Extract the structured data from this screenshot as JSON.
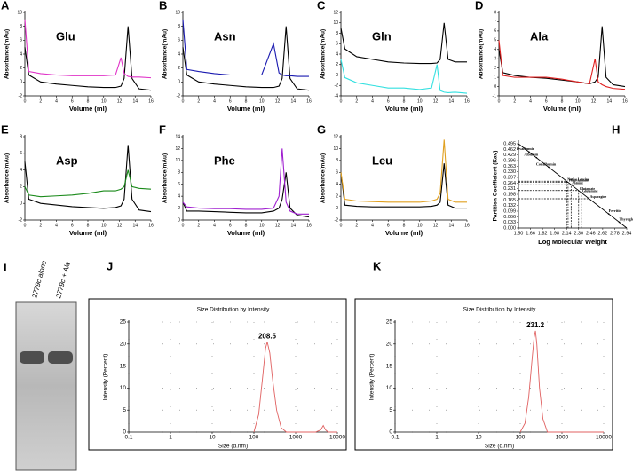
{
  "gel": {
    "panel": "I",
    "lanes": [
      "2779c alone",
      "2779c + Ala"
    ]
  },
  "chart_data": [
    {
      "type": "line",
      "panel": "A",
      "title": "Glu",
      "title_color": "#e033c8",
      "xlabel": "Volume (ml)",
      "ylabel": "Absorbance(mAu)",
      "x": [
        0,
        0.5,
        2,
        4,
        6,
        8,
        10,
        11.5,
        12.2,
        12.6,
        13.1,
        13.6,
        14.5,
        16
      ],
      "series": [
        {
          "color": "#000000",
          "values": [
            5,
            1,
            0,
            -0.3,
            -0.5,
            -0.7,
            -0.8,
            -0.8,
            -0.6,
            0.5,
            8,
            0.5,
            -1,
            -1.2
          ]
        },
        {
          "color": "#e033c8",
          "values": [
            9,
            1.5,
            1.2,
            1,
            0.9,
            0.9,
            0.9,
            1,
            3.5,
            1.2,
            0.8,
            0.7,
            0.7,
            0.6
          ]
        }
      ],
      "xlim": [
        0,
        16
      ],
      "ylim": [
        -2,
        10
      ],
      "xticks": [
        0,
        2,
        4,
        6,
        8,
        10,
        12,
        14,
        16
      ],
      "yticks": [
        -2,
        0,
        2,
        4,
        6,
        8,
        10
      ]
    },
    {
      "type": "line",
      "panel": "B",
      "title": "Asn",
      "title_color": "#1a1aa0",
      "xlabel": "Volume (ml)",
      "ylabel": "Absorbance(mAu)",
      "x": [
        0,
        0.5,
        2,
        4,
        6,
        8,
        10,
        11.5,
        12.2,
        12.6,
        13.1,
        13.6,
        14.5,
        16
      ],
      "series": [
        {
          "color": "#000000",
          "values": [
            5,
            1,
            0,
            -0.3,
            -0.5,
            -0.7,
            -0.8,
            -0.8,
            -0.6,
            0.5,
            8,
            0.5,
            -1,
            -1.2
          ]
        },
        {
          "color": "#1a1ab0",
          "values": [
            9,
            1.8,
            1.5,
            1.2,
            1,
            1,
            1,
            5.5,
            1.3,
            1,
            0.9,
            0.9,
            0.8,
            0.8
          ]
        }
      ],
      "xlim": [
        0,
        16
      ],
      "ylim": [
        -2,
        10
      ],
      "xticks": [
        0,
        2,
        4,
        6,
        8,
        10,
        12,
        14,
        16
      ],
      "yticks": [
        -2,
        0,
        2,
        4,
        6,
        8,
        10
      ]
    },
    {
      "type": "line",
      "panel": "C",
      "title": "Gln",
      "title_color": "#33d0e0",
      "xlabel": "Volume (ml)",
      "ylabel": "Absorbance(mAu)",
      "x": [
        0,
        0.5,
        2,
        4,
        6,
        8,
        10,
        11.5,
        12.2,
        12.6,
        13.1,
        13.6,
        14.5,
        16
      ],
      "series": [
        {
          "color": "#000000",
          "values": [
            9,
            5,
            3.5,
            3,
            2.5,
            2.3,
            2.2,
            2.2,
            2.3,
            3,
            10,
            3,
            2.5,
            2.5
          ]
        },
        {
          "color": "#33e0e0",
          "values": [
            3,
            -0.5,
            -1.5,
            -2,
            -2.5,
            -2.5,
            -2.8,
            -2.5,
            2,
            -3,
            -3.3,
            -3.4,
            -3.3,
            -3.5
          ]
        }
      ],
      "xlim": [
        0,
        16
      ],
      "ylim": [
        -4,
        12
      ],
      "xticks": [
        0,
        2,
        4,
        6,
        8,
        10,
        12,
        14,
        16
      ],
      "yticks": [
        -4,
        -2,
        0,
        2,
        4,
        6,
        8,
        10,
        12
      ]
    },
    {
      "type": "line",
      "panel": "D",
      "title": "Ala",
      "title_color": "#e02020",
      "xlabel": "Volume (ml)",
      "ylabel": "Absorbance(mAu)",
      "x": [
        0,
        0.5,
        2,
        4,
        6,
        8,
        10,
        11.5,
        12.2,
        12.6,
        13.1,
        13.6,
        14.5,
        16
      ],
      "series": [
        {
          "color": "#000000",
          "values": [
            4,
            1.5,
            1.2,
            1,
            0.9,
            0.7,
            0.5,
            0.3,
            0.5,
            1,
            6.5,
            1,
            0.2,
            0
          ]
        },
        {
          "color": "#e02020",
          "values": [
            5,
            1.2,
            1,
            1,
            1,
            0.8,
            0.5,
            0.3,
            3,
            0.5,
            0.2,
            0,
            -0.2,
            -0.3
          ]
        }
      ],
      "xlim": [
        0,
        16
      ],
      "ylim": [
        -1,
        8
      ],
      "xticks": [
        0,
        2,
        4,
        6,
        8,
        10,
        12,
        14,
        16
      ],
      "yticks": [
        -1,
        0,
        1,
        2,
        3,
        4,
        5,
        6,
        7,
        8
      ]
    },
    {
      "type": "line",
      "panel": "E",
      "title": "Asp",
      "title_color": "#1a8a1a",
      "xlabel": "Volume (ml)",
      "ylabel": "Absorbance(mAu)",
      "x": [
        0,
        0.5,
        2,
        4,
        6,
        8,
        10,
        11.5,
        12.2,
        12.6,
        13.1,
        13.6,
        14.5,
        16
      ],
      "series": [
        {
          "color": "#000000",
          "values": [
            5,
            0.5,
            0,
            -0.2,
            -0.4,
            -0.5,
            -0.6,
            -0.5,
            -0.3,
            0.5,
            7,
            0.5,
            -0.8,
            -1
          ]
        },
        {
          "color": "#1a8a1a",
          "values": [
            2,
            1,
            0.8,
            0.9,
            1,
            1.2,
            1.5,
            1.5,
            1.7,
            2,
            4,
            2,
            1.8,
            1.7
          ]
        }
      ],
      "xlim": [
        0,
        16
      ],
      "ylim": [
        -2,
        8
      ],
      "xticks": [
        0,
        2,
        4,
        6,
        8,
        10,
        12,
        14,
        16
      ],
      "yticks": [
        -2,
        0,
        2,
        4,
        6,
        8
      ]
    },
    {
      "type": "line",
      "panel": "F",
      "title": "Phe",
      "title_color": "#a020d0",
      "xlabel": "Volume (ml)",
      "ylabel": "Absorbance(mAu)",
      "x": [
        0,
        0.5,
        2,
        4,
        6,
        8,
        10,
        11.5,
        12.2,
        12.6,
        13.1,
        13.6,
        14.5,
        16
      ],
      "series": [
        {
          "color": "#000000",
          "values": [
            3,
            1.5,
            1.5,
            1.4,
            1.3,
            1.2,
            1.2,
            1.5,
            2,
            3.5,
            8,
            2,
            0.8,
            0.5
          ]
        },
        {
          "color": "#a020d0",
          "values": [
            3,
            2.2,
            2,
            1.9,
            1.9,
            1.8,
            1.8,
            2,
            4,
            12,
            3,
            1.5,
            1,
            1
          ]
        }
      ],
      "xlim": [
        0,
        16
      ],
      "ylim": [
        0,
        14
      ],
      "xticks": [
        0,
        2,
        4,
        6,
        8,
        10,
        12,
        14,
        16
      ],
      "yticks": [
        0,
        2,
        4,
        6,
        8,
        10,
        12,
        14
      ]
    },
    {
      "type": "line",
      "panel": "G",
      "title": "Leu",
      "title_color": "#e0a020",
      "xlabel": "Volume (ml)",
      "ylabel": "Absorbance(mAu)",
      "x": [
        0,
        0.5,
        2,
        4,
        6,
        8,
        10,
        11.5,
        12.2,
        12.6,
        13.1,
        13.6,
        14.5,
        16
      ],
      "series": [
        {
          "color": "#000000",
          "values": [
            6,
            0.5,
            0.3,
            0.2,
            0.2,
            0.2,
            0.2,
            0.3,
            0.5,
            1,
            7.5,
            0.5,
            0,
            0
          ]
        },
        {
          "color": "#e0a020",
          "values": [
            6,
            1.5,
            1.2,
            1.1,
            1,
            1,
            1,
            1.2,
            1.5,
            2.5,
            11.5,
            1.5,
            1,
            1
          ]
        }
      ],
      "xlim": [
        0,
        16
      ],
      "ylim": [
        -2,
        12
      ],
      "xticks": [
        0,
        2,
        4,
        6,
        8,
        10,
        12,
        14,
        16
      ],
      "yticks": [
        -2,
        0,
        2,
        4,
        6,
        8,
        10,
        12
      ]
    },
    {
      "type": "scatter",
      "panel": "H",
      "xlabel": "Log Molecular Weight",
      "ylabel": "Partition Coefficient (Kav)",
      "fit": {
        "x": [
          1.5,
          2.94
        ],
        "values": [
          0.495,
          0
        ]
      },
      "standards": {
        "labels": [
          "Ovalbumin",
          "Albumin",
          "Conalbumin",
          "Ferritin",
          "Thyroglobulin"
        ],
        "x": [
          1.64,
          1.74,
          1.9,
          2.7,
          2.84
        ],
        "values": [
          0.447,
          0.413,
          0.358,
          0.083,
          0.034
        ]
      },
      "samples": {
        "labels": [
          "Native Leucine",
          "Phenylalanine",
          "Alanine",
          "Glutamate",
          "Glutamine",
          "Asparagine"
        ],
        "x": [
          2.14,
          2.16,
          2.2,
          2.3,
          2.34,
          2.44
        ],
        "values": [
          0.275,
          0.268,
          0.254,
          0.22,
          0.206,
          0.172
        ]
      },
      "xlim": [
        1.5,
        2.94
      ],
      "ylim": [
        0,
        0.495
      ],
      "xticks": [
        {
          "value": 1.5,
          "label": "1.50"
        },
        1.66,
        1.82,
        1.98,
        2.14,
        {
          "value": 2.3,
          "label": "2.30"
        },
        2.46,
        2.62,
        2.78,
        2.94
      ],
      "yticks": [
        {
          "value": 0,
          "label": "0.000"
        },
        0.033,
        0.066,
        0.099,
        0.132,
        0.165,
        0.198,
        0.231,
        0.264,
        0.297,
        {
          "value": 0.33,
          "label": "0.330"
        },
        0.363,
        0.396,
        0.429,
        0.462,
        0.495
      ]
    },
    {
      "type": "line",
      "panel": "J",
      "frame": true,
      "grid": true,
      "xlog": true,
      "title": "Size Distribution by Intensity",
      "xlabel": "Size (d.nm)",
      "ylabel": "Intensity (Percent)",
      "x": [
        100,
        130,
        160,
        190,
        208.5,
        240,
        280,
        350,
        450,
        600,
        3000,
        4000,
        4600,
        5200,
        6000,
        10000
      ],
      "series": [
        {
          "color": "#e06060",
          "values": [
            0,
            4,
            12,
            19,
            20.5,
            18,
            12,
            5,
            1,
            0,
            0,
            0.5,
            1.5,
            0.5,
            0,
            0
          ]
        }
      ],
      "xlim": [
        0.1,
        10000
      ],
      "ylim": [
        0,
        25
      ],
      "xticks": [
        0.1,
        1,
        10,
        100,
        1000,
        10000
      ],
      "yticks": [
        0,
        5,
        10,
        15,
        20,
        25
      ],
      "peak": {
        "x": 208.5,
        "y": 20.5
      },
      "peak_color": "#d02020"
    },
    {
      "type": "line",
      "panel": "K",
      "frame": true,
      "grid": true,
      "xlog": true,
      "title": "Size Distribution by Intensity",
      "xlabel": "Size (d.nm)",
      "ylabel": "Intensity (Percent)",
      "x": [
        100,
        130,
        160,
        190,
        215,
        231.2,
        250,
        290,
        350,
        450,
        10000
      ],
      "series": [
        {
          "color": "#e06060",
          "values": [
            0,
            2,
            8,
            16,
            21.5,
            23,
            20,
            10,
            3,
            0,
            0
          ]
        }
      ],
      "xlim": [
        0.1,
        10000
      ],
      "ylim": [
        0,
        25
      ],
      "xticks": [
        0.1,
        1,
        10,
        100,
        1000,
        10000
      ],
      "yticks": [
        0,
        5,
        10,
        15,
        20,
        25
      ],
      "peak": {
        "x": 231.2,
        "y": 23
      },
      "peak_color": "#d02020"
    }
  ]
}
